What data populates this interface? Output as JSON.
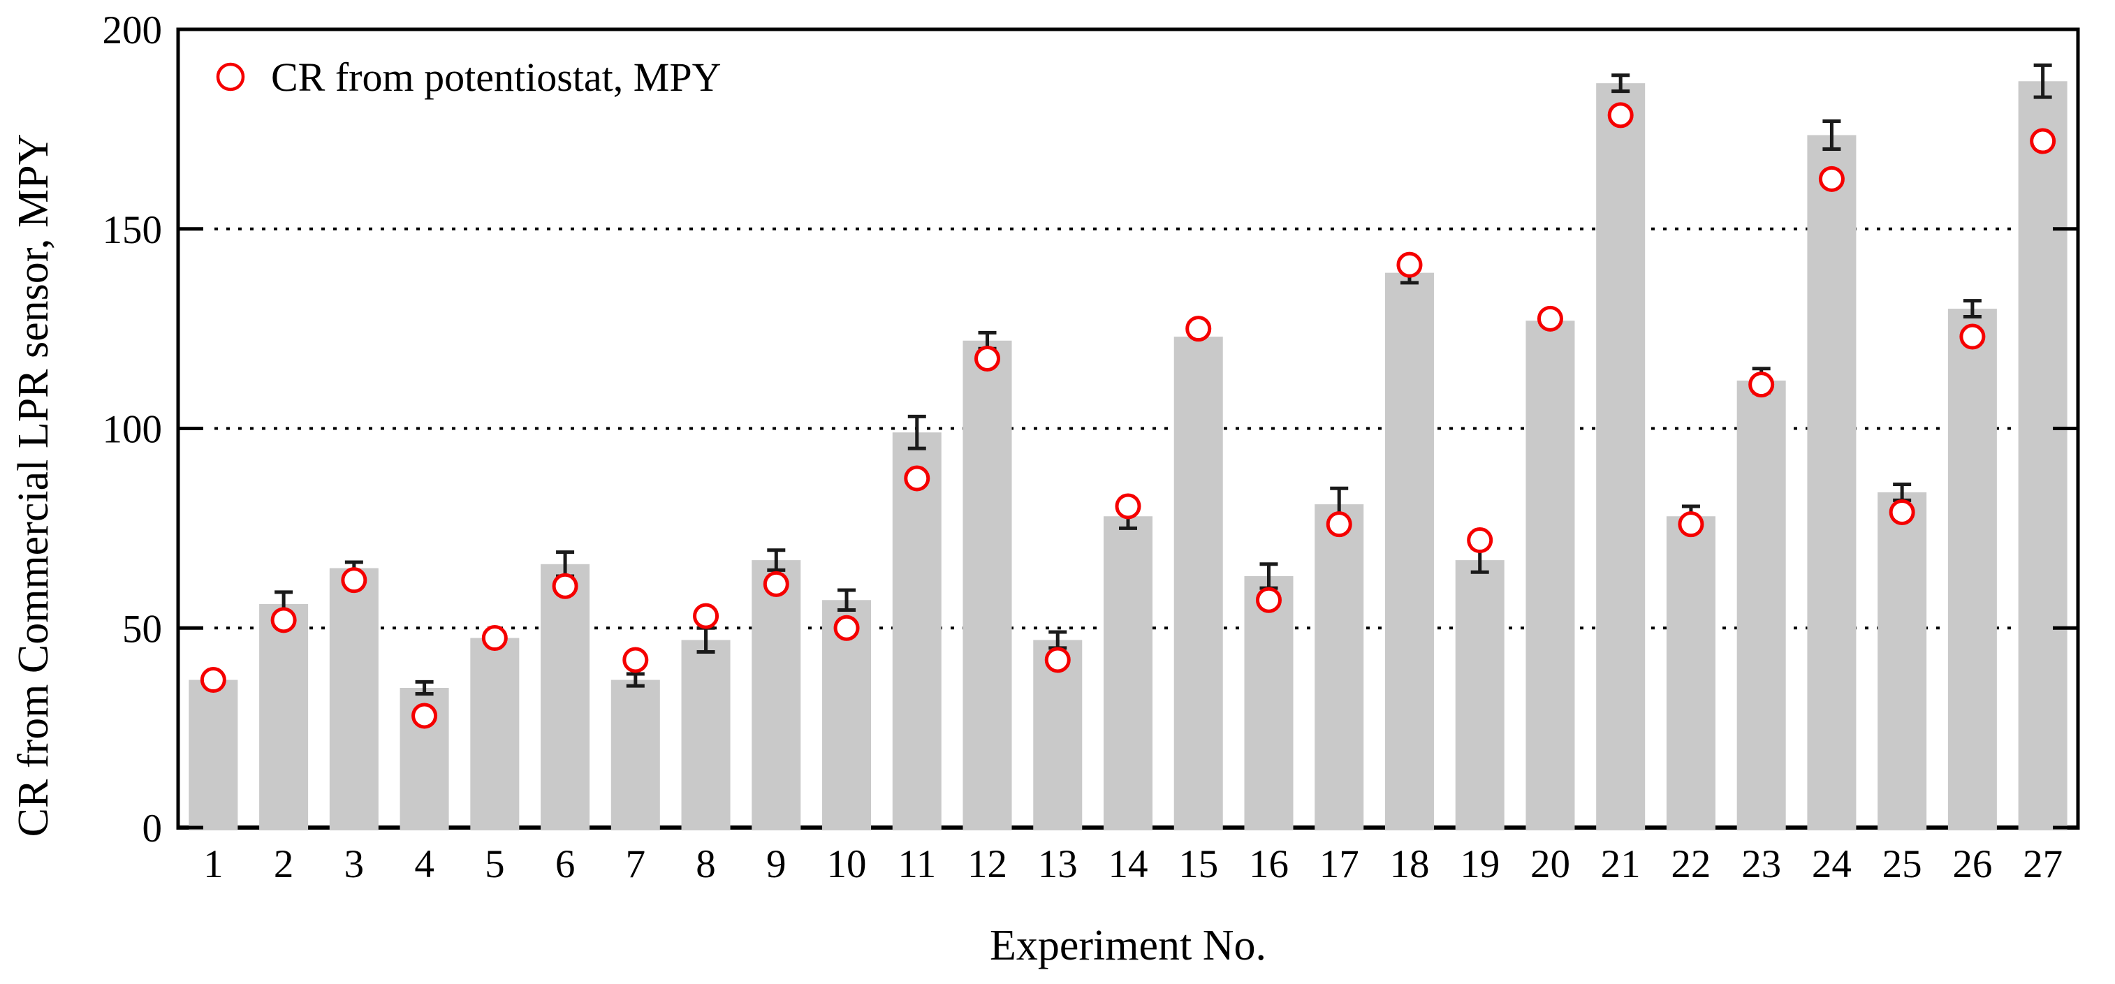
{
  "chart_data": {
    "type": "bar",
    "title": "",
    "xlabel": "Experiment No.",
    "ylabel": "CR from Commercial LPR sensor, MPY",
    "ylim": [
      0,
      200
    ],
    "y_ticks": [
      0,
      50,
      100,
      150,
      200
    ],
    "gridlines": [
      50,
      100,
      150
    ],
    "grid_style": "dotted-horizontal",
    "legend_position": "top-left-inside",
    "categories": [
      1,
      2,
      3,
      4,
      5,
      6,
      7,
      8,
      9,
      10,
      11,
      12,
      13,
      14,
      15,
      16,
      17,
      18,
      19,
      20,
      21,
      22,
      23,
      24,
      25,
      26,
      27
    ],
    "series": [
      {
        "name": "CR from Commercial LPR sensor, MPY",
        "type": "bar",
        "color": "#c9c9c9",
        "values": [
          37,
          56,
          65,
          35,
          47.5,
          66,
          37,
          47,
          67,
          57,
          99,
          122,
          47,
          78,
          123,
          63,
          81,
          139,
          67,
          127,
          186.5,
          78,
          112,
          173.5,
          84,
          130,
          187
        ],
        "errors": [
          0,
          3,
          1.5,
          1.5,
          0,
          3,
          1.5,
          3,
          2.5,
          2.5,
          4,
          2,
          2,
          3,
          0,
          3,
          4,
          2.5,
          3,
          0,
          2,
          2.5,
          3,
          3.5,
          2,
          2,
          4
        ]
      },
      {
        "name": "CR from potentiostat, MPY",
        "type": "scatter",
        "marker": "open-circle",
        "color": "#f50000",
        "values": [
          37,
          52,
          62,
          28,
          47.5,
          60.5,
          42,
          53,
          61,
          50,
          87.5,
          117.5,
          42,
          80.5,
          125,
          57,
          76,
          141,
          72,
          127.5,
          178.5,
          76,
          111,
          162.5,
          79,
          123,
          172
        ]
      }
    ],
    "error_bar_color": "#1a1a1a",
    "axis_color": "#000000"
  }
}
